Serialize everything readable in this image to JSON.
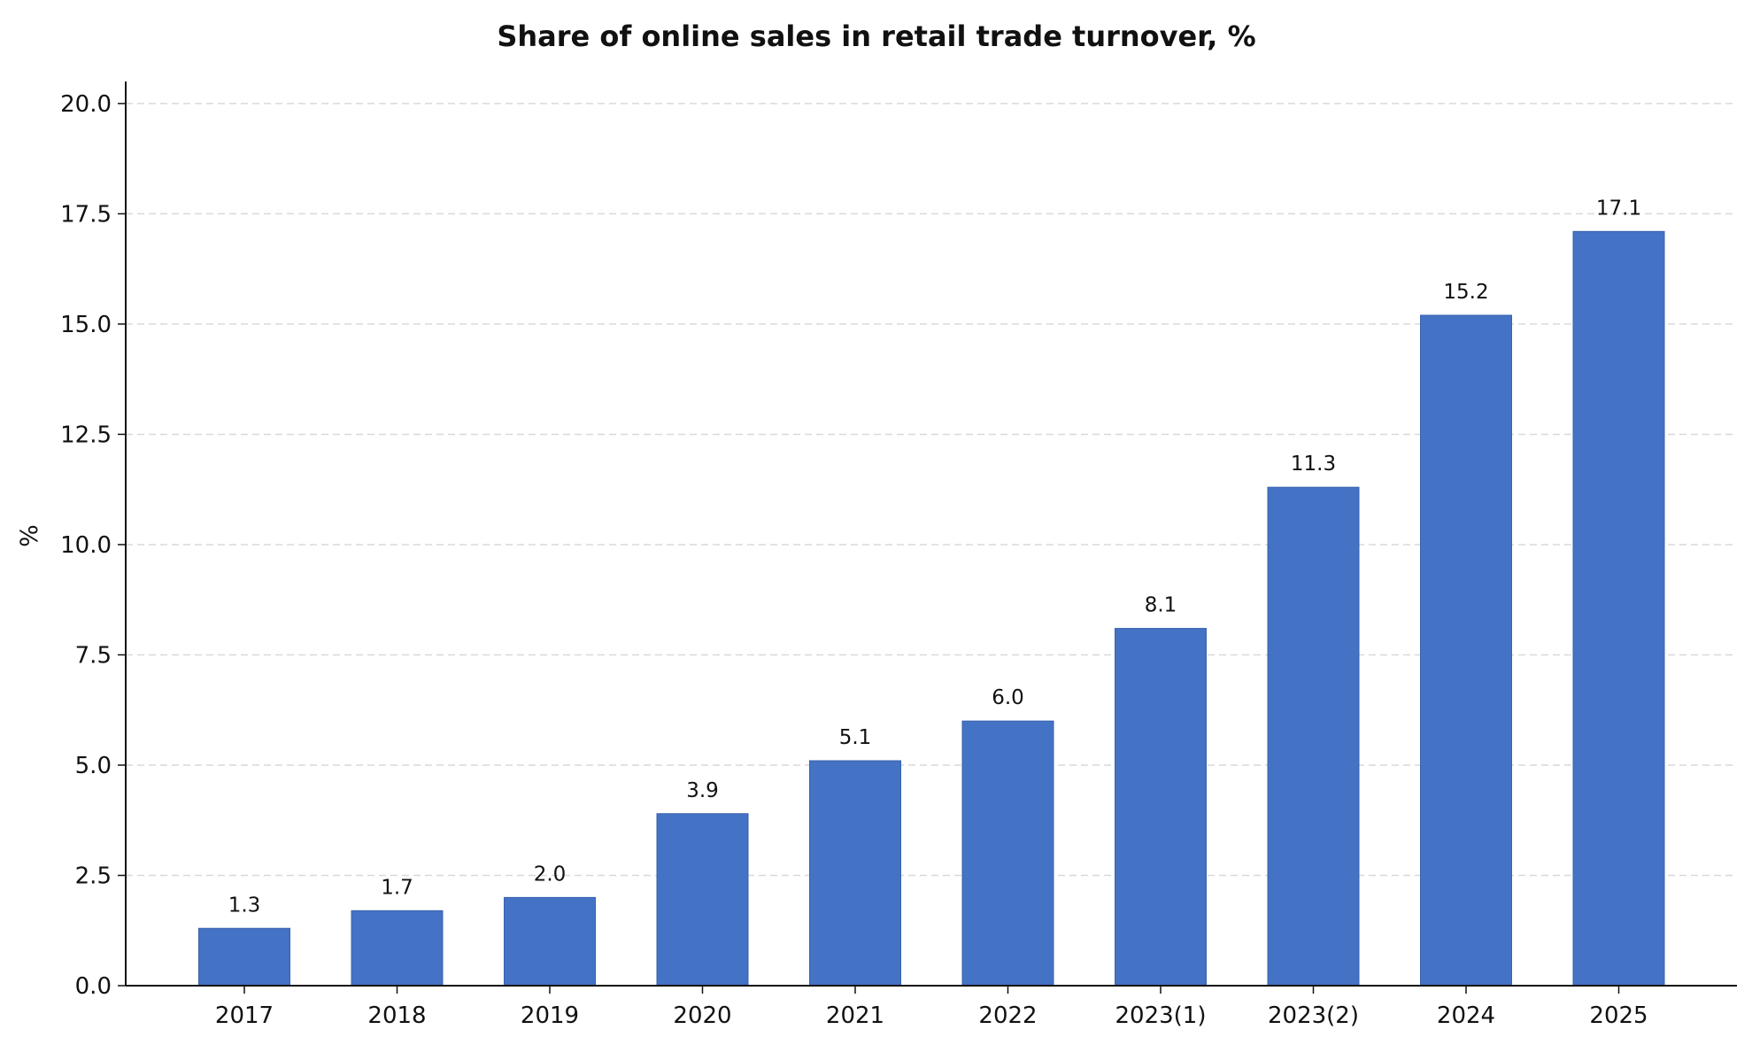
{
  "chart_data": {
    "type": "bar",
    "title": "Share of online sales in retail trade turnover, %",
    "xlabel": "",
    "ylabel": "%",
    "categories": [
      "2017",
      "2018",
      "2019",
      "2020",
      "2021",
      "2022",
      "2023(1)",
      "2023(2)",
      "2024",
      "2025"
    ],
    "values": [
      1.3,
      1.7,
      2.0,
      3.9,
      5.1,
      6.0,
      8.1,
      11.3,
      15.2,
      17.1
    ],
    "value_labels": [
      "1.3",
      "1.7",
      "2.0",
      "3.9",
      "5.1",
      "6.0",
      "8.1",
      "11.3",
      "15.2",
      "17.1"
    ],
    "ylim": [
      0,
      20.5
    ],
    "yticks": [
      0,
      2.5,
      5,
      7.5,
      10,
      12.5,
      15,
      17.5,
      20
    ],
    "ytick_labels": [
      "0.0",
      "2.5",
      "5.0",
      "7.5",
      "10.0",
      "12.5",
      "15.0",
      "17.5",
      "20.0"
    ],
    "grid": "horizontal-dashed",
    "legend": "none",
    "colors": {
      "bar": "#4472c4",
      "bar_edge": "#3a63ad",
      "grid": "#d9d9d9",
      "axis": "#111111"
    }
  }
}
